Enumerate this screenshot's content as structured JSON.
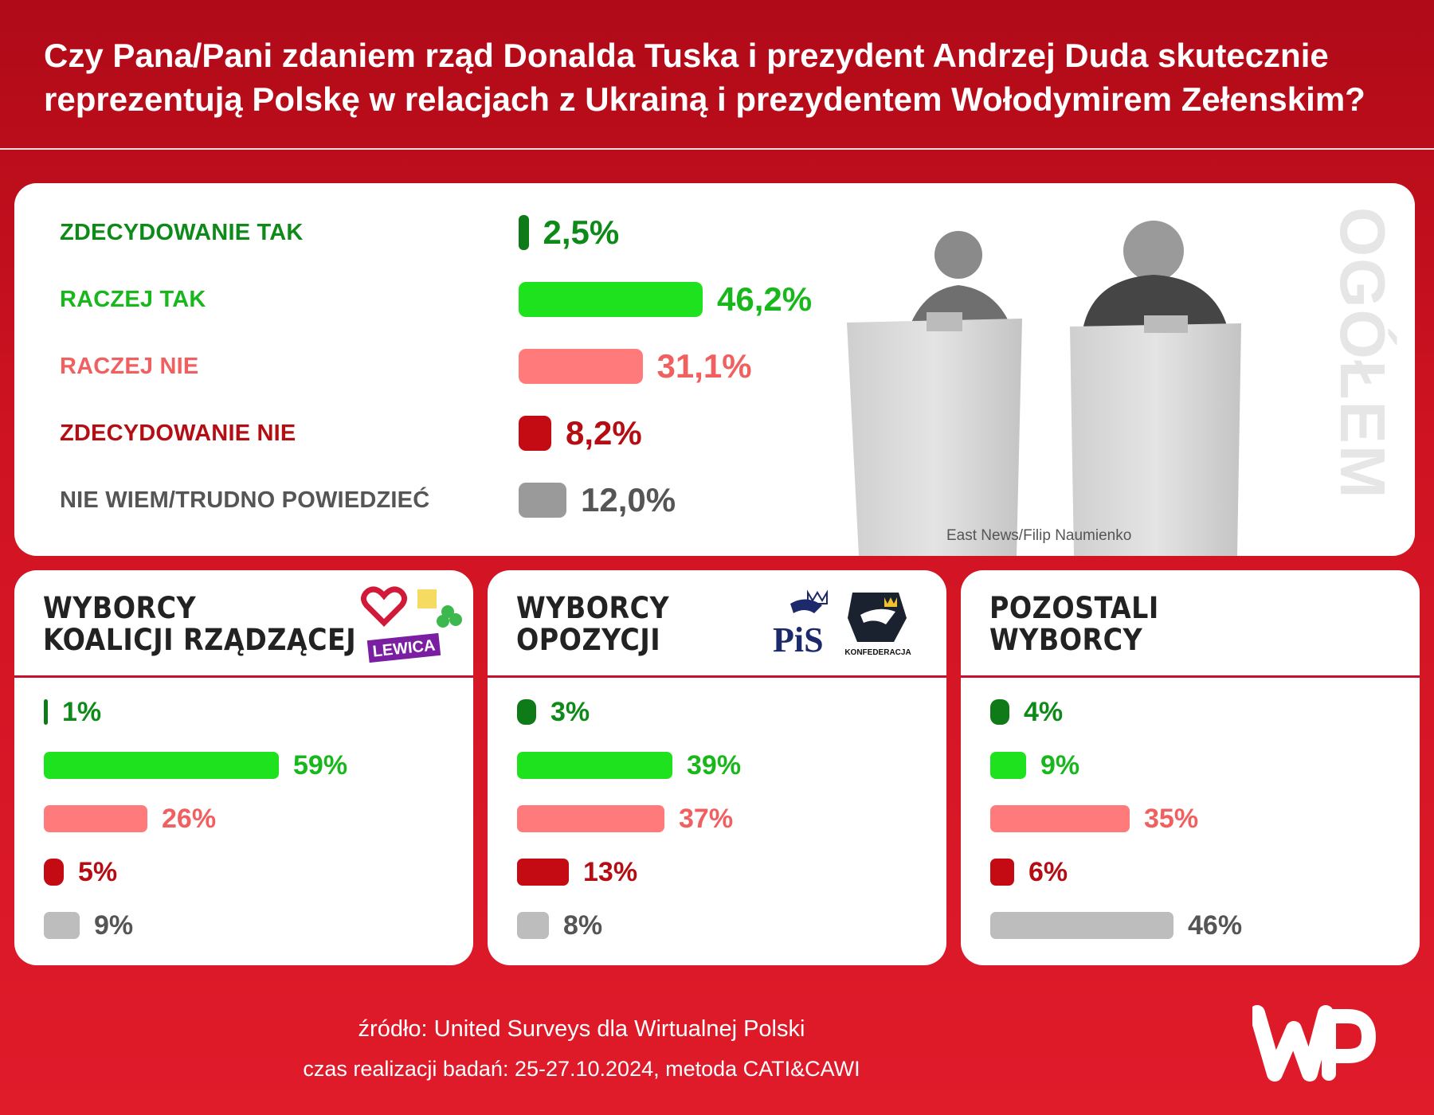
{
  "title_line1": "Czy Pana/Pani zdaniem rząd Donalda Tuska i prezydent Andrzej Duda skutecznie",
  "title_line2": "reprezentują Polskę w relacjach z Ukrainą i prezydentem Wołodymirem Zełenskim?",
  "colors": {
    "dark_green": "#0f7a18",
    "bright_green": "#1fe21f",
    "light_red": "#ff7b7b",
    "dark_red": "#c40a12",
    "grey": "#9a9a9a",
    "light_grey": "#bdbdbd",
    "label_green": "#0e8a19",
    "label_bright_green": "#18b81c",
    "label_salmon": "#f06060",
    "label_dark_red": "#b50d14",
    "label_grey": "#555555"
  },
  "chart_data": [
    {
      "type": "bar",
      "panel_label": "OGÓŁEM",
      "categories": [
        "ZDECYDOWANIE TAK",
        "RACZEJ TAK",
        "RACZEJ NIE",
        "ZDECYDOWANIE NIE",
        "NIE WIEM/TRUDNO POWIEDZIEĆ"
      ],
      "values": [
        2.5,
        46.2,
        31.1,
        8.2,
        12.0
      ],
      "value_labels": [
        "2,5%",
        "46,2%",
        "31,1%",
        "8,2%",
        "12,0%"
      ],
      "photo_credit": "East News/Filip Naumienko"
    },
    {
      "type": "bar",
      "title_line1": "WYBORCY",
      "title_line2": "KOALICJI RZĄDZĄCEJ",
      "logo_text": "LEWICA",
      "values": [
        1,
        59,
        26,
        5,
        9
      ],
      "value_labels": [
        "1%",
        "59%",
        "26%",
        "5%",
        "9%"
      ]
    },
    {
      "type": "bar",
      "title_line1": "WYBORCY",
      "title_line2": "OPOZYCJI",
      "logo_text": "PiS",
      "logo_text2": "KONFEDERACJA",
      "values": [
        3,
        39,
        37,
        13,
        8
      ],
      "value_labels": [
        "3%",
        "39%",
        "37%",
        "13%",
        "8%"
      ]
    },
    {
      "type": "bar",
      "title_line1": "POZOSTALI",
      "title_line2": "WYBORCY",
      "values": [
        4,
        9,
        35,
        6,
        46
      ],
      "value_labels": [
        "4%",
        "9%",
        "35%",
        "6%",
        "46%"
      ]
    }
  ],
  "source_line1": "źródło: United Surveys dla Wirtualnej Polski",
  "source_line2": "czas realizacji badań: 25-27.10.2024, metoda CATI&CAWI"
}
